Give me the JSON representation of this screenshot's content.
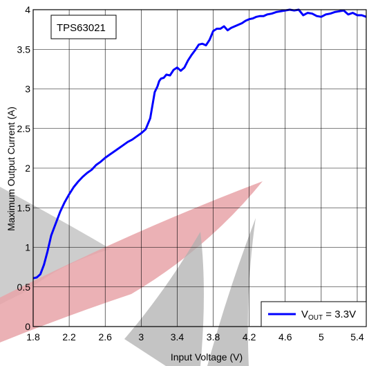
{
  "chart_data": {
    "type": "line",
    "xlabel": "Input Voltage (V)",
    "ylabel": "Maximum Output Current (A)",
    "xlim": [
      1.8,
      5.5
    ],
    "ylim": [
      0,
      4
    ],
    "x_ticks": [
      "1.8",
      "2.2",
      "2.6",
      "3",
      "3.4",
      "3.8",
      "4.2",
      "4.6",
      "5",
      "5.4"
    ],
    "y_ticks": [
      "0",
      "0.5",
      "1",
      "1.5",
      "2",
      "2.5",
      "3",
      "3.5",
      "4"
    ],
    "grid": true,
    "annotation": "TPS63021",
    "legend_position": "bottom-right",
    "series": [
      {
        "name_main": "V",
        "name_sub": "OUT",
        "name_rest": " = 3.3V",
        "color": "#0000ff",
        "x": [
          1.8,
          1.84,
          1.88,
          1.92,
          1.96,
          2.0,
          2.05,
          2.1,
          2.15,
          2.2,
          2.25,
          2.3,
          2.35,
          2.4,
          2.45,
          2.5,
          2.55,
          2.6,
          2.65,
          2.7,
          2.75,
          2.8,
          2.85,
          2.9,
          2.95,
          3.0,
          3.05,
          3.1,
          3.15,
          3.18,
          3.2,
          3.22,
          3.25,
          3.28,
          3.32,
          3.36,
          3.4,
          3.44,
          3.48,
          3.52,
          3.56,
          3.6,
          3.64,
          3.68,
          3.72,
          3.76,
          3.8,
          3.84,
          3.88,
          3.92,
          3.96,
          4.0,
          4.04,
          4.08,
          4.12,
          4.16,
          4.2,
          4.24,
          4.28,
          4.32,
          4.36,
          4.4,
          4.45,
          4.5,
          4.55,
          4.6,
          4.65,
          4.7,
          4.75,
          4.8,
          4.85,
          4.9,
          4.95,
          5.0,
          5.05,
          5.1,
          5.15,
          5.2,
          5.25,
          5.3,
          5.35,
          5.4,
          5.45,
          5.5
        ],
        "values": [
          0.61,
          0.62,
          0.66,
          0.78,
          0.95,
          1.15,
          1.3,
          1.45,
          1.57,
          1.67,
          1.76,
          1.83,
          1.89,
          1.94,
          1.98,
          2.04,
          2.08,
          2.13,
          2.17,
          2.21,
          2.25,
          2.29,
          2.33,
          2.36,
          2.4,
          2.44,
          2.49,
          2.63,
          2.96,
          3.03,
          3.1,
          3.13,
          3.14,
          3.18,
          3.17,
          3.24,
          3.27,
          3.23,
          3.27,
          3.36,
          3.43,
          3.49,
          3.56,
          3.57,
          3.55,
          3.62,
          3.73,
          3.76,
          3.76,
          3.79,
          3.74,
          3.77,
          3.79,
          3.81,
          3.83,
          3.86,
          3.88,
          3.89,
          3.91,
          3.92,
          3.92,
          3.94,
          3.95,
          3.97,
          3.98,
          3.99,
          4.0,
          3.99,
          4.0,
          3.93,
          3.96,
          3.95,
          3.92,
          3.91,
          3.94,
          3.95,
          3.97,
          3.98,
          3.99,
          3.94,
          3.96,
          3.93,
          3.93,
          3.91
        ]
      }
    ]
  }
}
